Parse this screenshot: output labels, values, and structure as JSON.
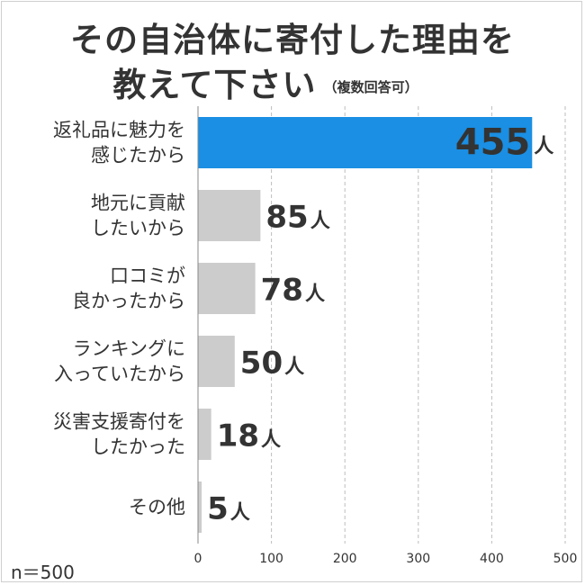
{
  "title_line1": "その自治体に寄付した理由を",
  "title_line2": "教えて下さい",
  "title_note": "（複数回答可）",
  "sample_size": "n＝500",
  "colors": {
    "highlight": "#1a8fe3",
    "bar": "#cccccc",
    "grid": "#bdbdbd",
    "text": "#333333"
  },
  "chart_data": {
    "type": "bar",
    "orientation": "horizontal",
    "unit": "人",
    "categories": [
      [
        "返礼品に魅力を",
        "感じたから"
      ],
      [
        "地元に貢献",
        "したいから"
      ],
      [
        "口コミが",
        "良かったから"
      ],
      [
        "ランキングに",
        "入っていたから"
      ],
      [
        "災害支援寄付を",
        "したかった"
      ],
      [
        "その他"
      ]
    ],
    "values": [
      455,
      85,
      78,
      50,
      18,
      5
    ],
    "highlight_index": 0,
    "xlim": [
      0,
      500
    ],
    "xticks": [
      0,
      100,
      200,
      300,
      400,
      500
    ],
    "grid": "vertical dashed"
  }
}
